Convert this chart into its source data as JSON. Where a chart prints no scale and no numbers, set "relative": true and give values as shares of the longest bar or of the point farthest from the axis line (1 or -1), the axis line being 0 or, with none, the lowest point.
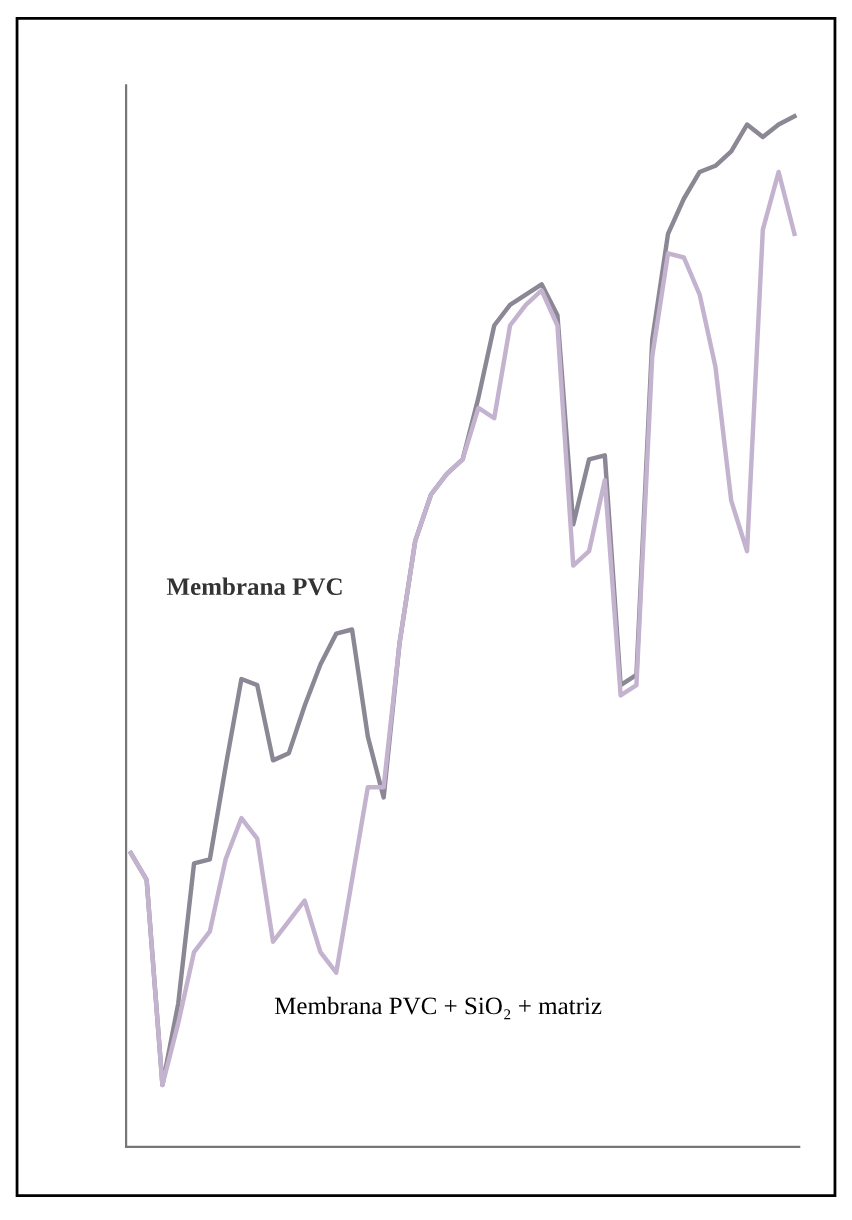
{
  "chart_data": {
    "type": "line",
    "relative": true,
    "categories": [
      null,
      null,
      null,
      null,
      null,
      null,
      null,
      null,
      null,
      null,
      null,
      null,
      null,
      null,
      null,
      null,
      null,
      null,
      null,
      null,
      null,
      null,
      null,
      null,
      null,
      null,
      null,
      null,
      null,
      null,
      null,
      null,
      null,
      null,
      null,
      null,
      null,
      null,
      null,
      null,
      null,
      null,
      null
    ],
    "series": [
      {
        "name": "Membrana PVC",
        "color": "#8c8794",
        "values": [
          0.285,
          0.259,
          0.06,
          0.139,
          0.275,
          0.279,
          0.369,
          0.454,
          0.448,
          0.375,
          0.382,
          0.428,
          0.468,
          0.498,
          0.502,
          0.398,
          0.339,
          0.488,
          0.588,
          0.633,
          0.653,
          0.667,
          0.727,
          0.797,
          0.817,
          0.827,
          0.837,
          0.807,
          0.604,
          0.667,
          0.671,
          0.448,
          0.458,
          0.783,
          0.886,
          0.92,
          0.946,
          0.952,
          0.966,
          0.992,
          0.98,
          0.992,
          1.0
        ]
      },
      {
        "name": "Membrana PVC + SiO₂ + matriz",
        "color": "#c3b3cf",
        "values": [
          0.285,
          0.259,
          0.06,
          0.12,
          0.189,
          0.209,
          0.279,
          0.319,
          0.299,
          0.199,
          0.219,
          0.239,
          0.189,
          0.169,
          0.259,
          0.349,
          0.349,
          0.488,
          0.588,
          0.633,
          0.653,
          0.667,
          0.717,
          0.707,
          0.797,
          0.817,
          0.831,
          0.797,
          0.564,
          0.578,
          0.647,
          0.438,
          0.448,
          0.767,
          0.867,
          0.863,
          0.827,
          0.757,
          0.627,
          0.578,
          0.89,
          0.946,
          0.886
        ]
      }
    ],
    "grid": false,
    "legend": false,
    "marker": "none",
    "line_style": "solid"
  }
}
